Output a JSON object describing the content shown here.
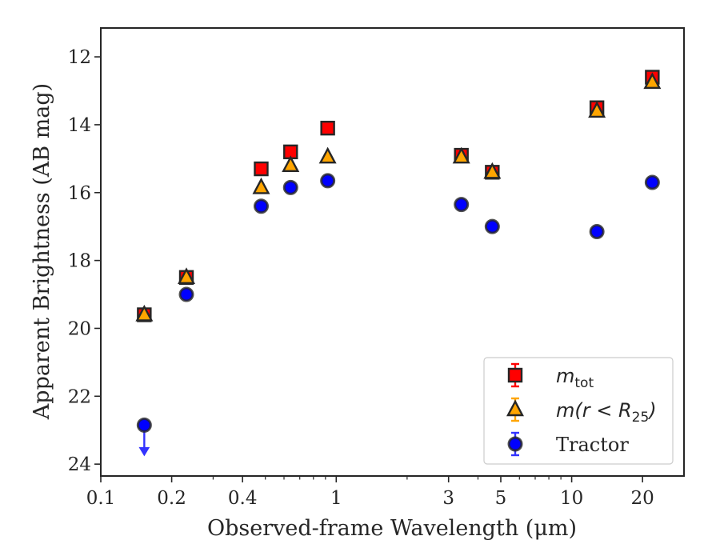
{
  "chart_data": {
    "type": "scatter",
    "title": "",
    "xlabel": "Observed-frame Wavelength (μm)",
    "ylabel": "Apparent Brightness (AB mag)",
    "xscale": "log",
    "xlim": [
      0.1,
      30
    ],
    "ylim": [
      24.35,
      11.15
    ],
    "y_inverted": true,
    "x_major_ticks": [
      0.1,
      0.2,
      0.4,
      1,
      3,
      5,
      10,
      20
    ],
    "x_tick_labels": [
      "0.1",
      "0.2",
      "0.4",
      "1",
      "3",
      "5",
      "10",
      "20"
    ],
    "y_ticks": [
      12,
      14,
      16,
      18,
      20,
      22,
      24
    ],
    "y_tick_labels": [
      "12",
      "14",
      "16",
      "18",
      "20",
      "22",
      "24"
    ],
    "legend_position": "lower-right",
    "series": [
      {
        "name": "m_tot",
        "legend_main": "m",
        "legend_sub": "tot",
        "marker": "square",
        "color": "#ff0000",
        "edge": "#262626",
        "x": [
          0.153,
          0.231,
          0.48,
          0.64,
          0.92,
          3.4,
          4.6,
          12.8,
          22.0
        ],
        "y": [
          19.6,
          18.5,
          15.3,
          14.8,
          14.1,
          14.9,
          15.4,
          13.5,
          12.6
        ]
      },
      {
        "name": "m(r < R_25)",
        "legend_main": "m(r < R",
        "legend_sub": "25",
        "legend_tail": ")",
        "marker": "triangle",
        "color": "#ffa500",
        "edge": "#262626",
        "x": [
          0.153,
          0.231,
          0.48,
          0.64,
          0.92,
          3.4,
          4.6,
          12.8,
          22.0
        ],
        "y": [
          19.6,
          18.5,
          15.85,
          15.2,
          14.95,
          14.95,
          15.4,
          13.6,
          12.75
        ]
      },
      {
        "name": "Tractor",
        "legend_main": "Tractor",
        "marker": "circle",
        "color": "#0000ff",
        "edge": "#262626",
        "x": [
          0.153,
          0.231,
          0.48,
          0.64,
          0.92,
          3.4,
          4.6,
          12.8,
          22.0
        ],
        "y": [
          22.85,
          19.0,
          16.4,
          15.85,
          15.65,
          16.35,
          17.0,
          17.15,
          15.7
        ],
        "upper_limit": [
          true,
          false,
          false,
          false,
          false,
          false,
          false,
          false,
          false
        ]
      }
    ]
  }
}
